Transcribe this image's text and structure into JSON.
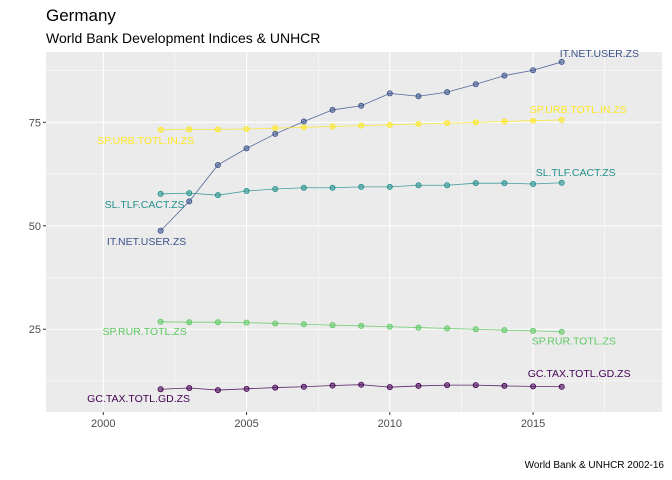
{
  "title": "Germany",
  "subtitle": "World Bank Development Indices & UNHCR",
  "caption": "World Bank & UNHCR 2002-16",
  "chart_data": {
    "type": "line",
    "x": [
      2002,
      2003,
      2004,
      2005,
      2006,
      2007,
      2008,
      2009,
      2010,
      2011,
      2012,
      2013,
      2014,
      2015,
      2016
    ],
    "xlim": [
      1998,
      2019.5
    ],
    "ylim": [
      5,
      92
    ],
    "x_ticks": [
      2000,
      2005,
      2010,
      2015
    ],
    "y_ticks": [
      25,
      50,
      75
    ],
    "grid": true,
    "legend": "none",
    "series": [
      {
        "name": "IT.NET.USER.ZS",
        "color": "#3b528b",
        "values": [
          48.8,
          55.9,
          64.7,
          68.7,
          72.2,
          75.2,
          78.0,
          79.0,
          82.0,
          81.3,
          82.3,
          84.2,
          86.3,
          87.6,
          89.6
        ]
      },
      {
        "name": "SP.URB.TOTL.IN.ZS",
        "color": "#fde725",
        "values": [
          73.2,
          73.3,
          73.3,
          73.4,
          73.6,
          73.8,
          74.0,
          74.2,
          74.4,
          74.6,
          74.8,
          75.0,
          75.2,
          75.4,
          75.6
        ]
      },
      {
        "name": "SL.TLF.CACT.ZS",
        "color": "#21908c",
        "values": [
          57.7,
          57.9,
          57.4,
          58.4,
          58.9,
          59.2,
          59.2,
          59.4,
          59.4,
          59.8,
          59.8,
          60.3,
          60.3,
          60.1,
          60.4
        ]
      },
      {
        "name": "SP.RUR.TOTL.ZS",
        "color": "#5ec962",
        "values": [
          26.8,
          26.7,
          26.7,
          26.6,
          26.4,
          26.2,
          26.0,
          25.8,
          25.6,
          25.4,
          25.2,
          25.0,
          24.8,
          24.6,
          24.4
        ]
      },
      {
        "name": "GC.TAX.TOTL.GD.ZS",
        "color": "#440154",
        "values": [
          10.5,
          10.8,
          10.3,
          10.6,
          10.9,
          11.1,
          11.4,
          11.6,
          11.0,
          11.3,
          11.5,
          11.5,
          11.3,
          11.2,
          11.1
        ]
      }
    ],
    "labels": [
      {
        "series": 0,
        "text": "IT.NET.USER.ZS",
        "side": "end"
      },
      {
        "series": 0,
        "text": "IT.NET.USER.ZS",
        "side": "start"
      },
      {
        "series": 1,
        "text": "SP.URB.TOTL.IN.ZS",
        "side": "end"
      },
      {
        "series": 1,
        "text": "SP.URB.TOTL.IN.ZS",
        "side": "start"
      },
      {
        "series": 2,
        "text": "SL.TLF.CACT.ZS",
        "side": "end"
      },
      {
        "series": 2,
        "text": "SL.TLF.CACT.ZS",
        "side": "start"
      },
      {
        "series": 3,
        "text": "SP.RUR.TOTL.ZS",
        "side": "end"
      },
      {
        "series": 3,
        "text": "SP.RUR.TOTL.ZS",
        "side": "start"
      },
      {
        "series": 4,
        "text": "GC.TAX.TOTL.GD.ZS",
        "side": "end"
      },
      {
        "series": 4,
        "text": "GC.TAX.TOTL.GD.ZS",
        "side": "start"
      }
    ]
  }
}
